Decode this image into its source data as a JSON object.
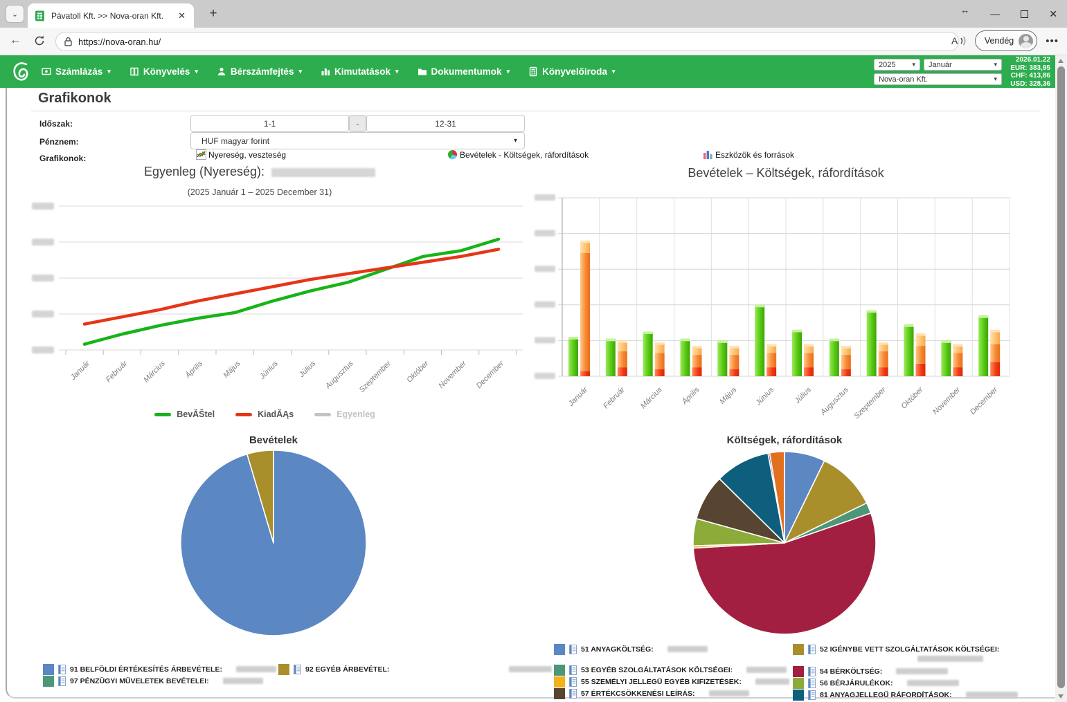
{
  "browser": {
    "tab_title": "Pávatoll Kft. >> Nova-oran Kft.",
    "new_tab": "+",
    "close_tab": "✕",
    "url": "https://nova-oran.hu/",
    "profile_label": "Vendég",
    "window_controls": {
      "resize": "↔",
      "minimize": "—",
      "close": "✕"
    }
  },
  "navbar": {
    "menu": [
      {
        "label": "Számlázás"
      },
      {
        "label": "Könyvelés"
      },
      {
        "label": "Bérszámfejtés"
      },
      {
        "label": "Kimutatások"
      },
      {
        "label": "Dokumentumok"
      },
      {
        "label": "Könyvelőiroda"
      }
    ],
    "year_select": "2025",
    "month_select": "Január",
    "company_select": "Nova-oran Kft.",
    "fx_date": "2026.01.22",
    "fx_rates": [
      {
        "code": "EUR",
        "value": "383,95"
      },
      {
        "code": "CHF",
        "value": "413,86"
      },
      {
        "code": "USD",
        "value": "328,36"
      }
    ],
    "username_redacted": true
  },
  "page": {
    "title": "Grafikonok",
    "form": {
      "period_label": "Időszak:",
      "period_from": "1-1",
      "period_separator": "-",
      "period_to": "12-31",
      "currency_label": "Pénznem:",
      "currency_value": "HUF magyar forint",
      "charts_label": "Grafikonok:",
      "chart_links": [
        {
          "label": "Nyereség, veszteség",
          "icon": "line-chart-icon"
        },
        {
          "label": "Bevételek - Költségek, ráfordítások",
          "icon": "pie-chart-icon"
        },
        {
          "label": "Eszközök és források",
          "icon": "bar-chart-icon"
        }
      ]
    }
  },
  "chart_data": [
    {
      "type": "line",
      "title": "Egyenleg (Nyereség):",
      "title_value_redacted": true,
      "subtitle": "(2025 Január 1 – 2025 December 31)",
      "categories": [
        "Január",
        "Február",
        "Március",
        "Április",
        "Május",
        "Június",
        "Július",
        "Augusztus",
        "Szeptember",
        "Október",
        "November",
        "December"
      ],
      "y_axis_labels_redacted": true,
      "units": "percent_of_axis (y labels blurred in source)",
      "ylim": [
        0,
        100
      ],
      "grid": true,
      "series": [
        {
          "name": "BevĂŠtel",
          "color": "#17b417",
          "values": [
            4,
            11,
            17,
            22,
            26,
            34,
            41,
            47,
            56,
            65,
            69,
            77
          ]
        },
        {
          "name": "KiadĂĄs",
          "color": "#e63517",
          "values": [
            18,
            23,
            28,
            34,
            39,
            44,
            49,
            53,
            57,
            61,
            65,
            70
          ]
        },
        {
          "name": "Egyenleg",
          "color": "#c3c3c3",
          "values": null,
          "disabled": true
        }
      ],
      "legend_position": "bottom"
    },
    {
      "type": "bar",
      "title": "Bevételek – Költségek, ráfordítások",
      "categories": [
        "Január",
        "Február",
        "Március",
        "Április",
        "Május",
        "Június",
        "Július",
        "Augusztus",
        "Szeptember",
        "Október",
        "November",
        "December"
      ],
      "y_axis_labels_redacted": true,
      "units": "percent_of_axis (y labels blurred in source)",
      "ylim": [
        0,
        100
      ],
      "grid": true,
      "series": [
        {
          "name": "Bevételek",
          "color": "#57ca12",
          "values": [
            22,
            21,
            25,
            21,
            20,
            40,
            26,
            21,
            37,
            29,
            20,
            34
          ]
        },
        {
          "name": "Költségek, ráfordítások",
          "stack_colors": [
            "#f23812",
            "#f78a34",
            "#fdc06e"
          ],
          "stacks": [
            [
              3,
              66,
              7
            ],
            [
              5,
              9,
              6
            ],
            [
              4,
              9,
              6
            ],
            [
              5,
              7,
              5
            ],
            [
              4,
              8,
              5
            ],
            [
              5,
              8,
              5
            ],
            [
              5,
              8,
              5
            ],
            [
              4,
              8,
              5
            ],
            [
              5,
              9,
              5
            ],
            [
              7,
              10,
              7
            ],
            [
              5,
              8,
              5
            ],
            [
              8,
              10,
              8
            ]
          ]
        }
      ]
    },
    {
      "type": "pie",
      "title": "Bevételek",
      "slices": [
        {
          "label": "91 BELFÖLDI ÉRTÉKESÍTÉS ÁRBEVÉTELE:",
          "color": "#5b87c3",
          "pct": 95.4,
          "value_redacted": true
        },
        {
          "label": "92 EGYÉB ÁRBEVÉTEL:",
          "color": "#a98f2c",
          "pct": 4.6,
          "value_redacted": true
        },
        {
          "label": "97 PÉNZÜGYI MŰVELETEK BEVÉTELEI:",
          "color": "#4e9678",
          "pct": 0,
          "value_redacted": true
        }
      ],
      "legend_columns": [
        [
          0,
          2
        ],
        [
          1
        ]
      ]
    },
    {
      "type": "pie",
      "title": "Költségek, ráfordítások",
      "slices": [
        {
          "label": "51 ANYAGKÖLTSÉG:",
          "color": "#5b87c3",
          "pct": 7.2,
          "value_redacted": true
        },
        {
          "label": "52 IGÉNYBE VETT SZOLGÁLTATÁSOK KÖLTSÉGEI:",
          "color": "#a98f2c",
          "pct": 10.6,
          "value_redacted": true
        },
        {
          "label": "53 EGYÉB SZOLGÁLTATÁSOK KÖLTSÉGEI:",
          "color": "#4e9678",
          "pct": 1.9,
          "value_redacted": true
        },
        {
          "label": "54 BÉRKÖLTSÉG:",
          "color": "#a31f41",
          "pct": 54.4,
          "value_redacted": true
        },
        {
          "label": "55 SZEMÉLYI JELLEGŰ EGYÉB KIFIZETÉSEK:",
          "color": "#f3b11c",
          "pct": 0.4,
          "value_redacted": true
        },
        {
          "label": "56 BÉRJÁRULÉKOK:",
          "color": "#8cab38",
          "pct": 4.8,
          "value_redacted": true
        },
        {
          "label": "57 ÉRTÉKCSÖKKENÉSI LEÍRÁS:",
          "color": "#574431",
          "pct": 8.1,
          "value_redacted": true
        },
        {
          "label": "81 ANYAGJELLEGŰ RÁFORDÍTÁSOK:",
          "color": "#0e5f7e",
          "pct": 9.7,
          "value_redacted": true
        },
        {
          "label": "",
          "color": "#4f3a86",
          "pct": 0.3
        },
        {
          "label": "",
          "color": "#e2711f",
          "pct": 2.6
        }
      ],
      "legend_columns": [
        [
          0,
          2,
          4,
          6
        ],
        [
          1,
          3,
          5,
          7
        ]
      ]
    }
  ]
}
